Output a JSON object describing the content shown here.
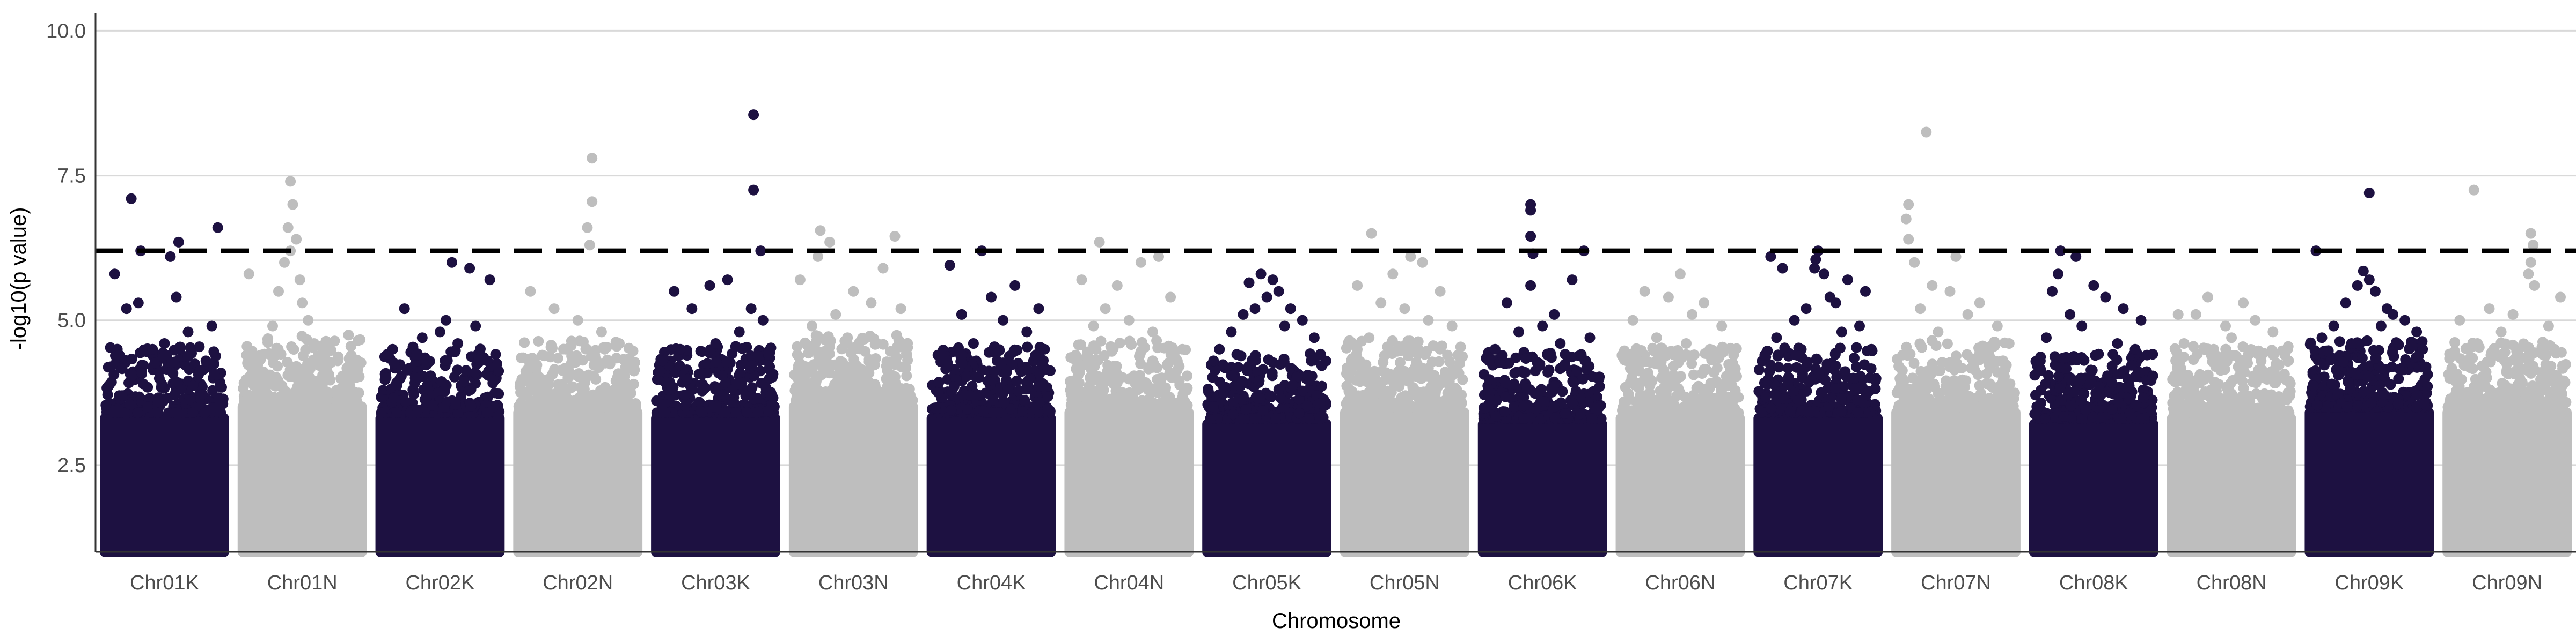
{
  "chart_data": {
    "type": "scatter",
    "subtype": "manhattan",
    "title": "",
    "xlabel": "Chromosome",
    "ylabel": "-log10(p value)",
    "ylim": [
      1,
      10.3
    ],
    "y_ticks": [
      2.5,
      5.0,
      7.5,
      10.0
    ],
    "y_tick_labels": [
      "2.5",
      "5.0",
      "7.5",
      "10.0"
    ],
    "grid": {
      "horizontal_major": true,
      "vertical": false
    },
    "threshold": {
      "value": 6.2,
      "style": "dashed",
      "color": "#000000"
    },
    "colors": {
      "odd": "#1d1141",
      "even": "#bebebe",
      "grid": "#d9d9d9",
      "axis": "#333333"
    },
    "categories": [
      "Chr01K",
      "Chr01N",
      "Chr02K",
      "Chr02N",
      "Chr03K",
      "Chr03N",
      "Chr04K",
      "Chr04N",
      "Chr05K",
      "Chr05N",
      "Chr06K",
      "Chr06N",
      "Chr07K",
      "Chr07N",
      "Chr08K",
      "Chr08N",
      "Chr09K",
      "Chr09N"
    ],
    "series": [
      {
        "category": "Chr01K",
        "color": "#1d1141",
        "bulk_max": 3.4,
        "top_points": [
          [
            0.22,
            7.1
          ],
          [
            0.62,
            6.35
          ],
          [
            0.95,
            6.6
          ],
          [
            0.3,
            6.2
          ],
          [
            0.55,
            6.1
          ],
          [
            0.08,
            5.8
          ],
          [
            0.6,
            5.4
          ],
          [
            0.28,
            5.3
          ],
          [
            0.18,
            5.2
          ],
          [
            0.9,
            4.9
          ],
          [
            0.7,
            4.8
          ],
          [
            0.5,
            4.6
          ],
          [
            0.12,
            4.4
          ],
          [
            0.4,
            4.5
          ],
          [
            0.05,
            4.2
          ],
          [
            0.85,
            4.3
          ]
        ]
      },
      {
        "category": "Chr01N",
        "color": "#bebebe",
        "bulk_max": 3.6,
        "top_points": [
          [
            0.4,
            7.4
          ],
          [
            0.42,
            7.0
          ],
          [
            0.38,
            6.6
          ],
          [
            0.45,
            6.4
          ],
          [
            0.4,
            6.2
          ],
          [
            0.35,
            6.0
          ],
          [
            0.05,
            5.8
          ],
          [
            0.48,
            5.7
          ],
          [
            0.3,
            5.5
          ],
          [
            0.5,
            5.3
          ],
          [
            0.55,
            5.0
          ],
          [
            0.25,
            4.9
          ],
          [
            0.6,
            4.6
          ],
          [
            0.7,
            4.5
          ],
          [
            0.8,
            4.3
          ],
          [
            0.9,
            4.2
          ],
          [
            0.15,
            4.4
          ]
        ]
      },
      {
        "category": "Chr02K",
        "color": "#1d1141",
        "bulk_max": 3.4,
        "top_points": [
          [
            0.6,
            6.0
          ],
          [
            0.75,
            5.9
          ],
          [
            0.92,
            5.7
          ],
          [
            0.2,
            5.2
          ],
          [
            0.55,
            5.0
          ],
          [
            0.5,
            4.8
          ],
          [
            0.8,
            4.9
          ],
          [
            0.35,
            4.7
          ],
          [
            0.1,
            4.5
          ],
          [
            0.65,
            4.6
          ],
          [
            0.3,
            4.4
          ],
          [
            0.9,
            4.3
          ]
        ]
      },
      {
        "category": "Chr02N",
        "color": "#bebebe",
        "bulk_max": 3.5,
        "top_points": [
          [
            0.62,
            7.8
          ],
          [
            0.62,
            7.05
          ],
          [
            0.58,
            6.6
          ],
          [
            0.6,
            6.3
          ],
          [
            0.1,
            5.5
          ],
          [
            0.3,
            5.2
          ],
          [
            0.5,
            5.0
          ],
          [
            0.7,
            4.8
          ],
          [
            0.85,
            4.6
          ],
          [
            0.2,
            4.4
          ],
          [
            0.4,
            4.5
          ],
          [
            0.95,
            4.3
          ]
        ]
      },
      {
        "category": "Chr03K",
        "color": "#1d1141",
        "bulk_max": 3.4,
        "top_points": [
          [
            0.82,
            8.55
          ],
          [
            0.82,
            7.25
          ],
          [
            0.88,
            6.2
          ],
          [
            0.6,
            5.7
          ],
          [
            0.45,
            5.6
          ],
          [
            0.15,
            5.5
          ],
          [
            0.8,
            5.2
          ],
          [
            0.3,
            5.2
          ],
          [
            0.9,
            5.0
          ],
          [
            0.7,
            4.8
          ],
          [
            0.5,
            4.6
          ],
          [
            0.2,
            4.5
          ],
          [
            0.05,
            4.3
          ],
          [
            0.95,
            4.4
          ]
        ]
      },
      {
        "category": "Chr03N",
        "color": "#bebebe",
        "bulk_max": 3.6,
        "top_points": [
          [
            0.22,
            6.55
          ],
          [
            0.3,
            6.35
          ],
          [
            0.85,
            6.45
          ],
          [
            0.2,
            6.1
          ],
          [
            0.75,
            5.9
          ],
          [
            0.05,
            5.7
          ],
          [
            0.5,
            5.5
          ],
          [
            0.65,
            5.3
          ],
          [
            0.35,
            5.1
          ],
          [
            0.9,
            5.2
          ],
          [
            0.15,
            4.9
          ],
          [
            0.45,
            4.7
          ],
          [
            0.7,
            4.6
          ],
          [
            0.95,
            4.4
          ]
        ]
      },
      {
        "category": "Chr04K",
        "color": "#1d1141",
        "bulk_max": 3.4,
        "top_points": [
          [
            0.42,
            6.2
          ],
          [
            0.15,
            5.95
          ],
          [
            0.7,
            5.6
          ],
          [
            0.5,
            5.4
          ],
          [
            0.9,
            5.2
          ],
          [
            0.25,
            5.1
          ],
          [
            0.6,
            5.0
          ],
          [
            0.8,
            4.8
          ],
          [
            0.35,
            4.6
          ],
          [
            0.05,
            4.4
          ],
          [
            0.95,
            4.5
          ],
          [
            0.55,
            4.3
          ]
        ]
      },
      {
        "category": "Chr04N",
        "color": "#bebebe",
        "bulk_max": 3.5,
        "top_points": [
          [
            0.25,
            6.35
          ],
          [
            0.75,
            6.1
          ],
          [
            0.6,
            6.0
          ],
          [
            0.1,
            5.7
          ],
          [
            0.4,
            5.6
          ],
          [
            0.85,
            5.4
          ],
          [
            0.3,
            5.2
          ],
          [
            0.5,
            5.0
          ],
          [
            0.2,
            4.9
          ],
          [
            0.7,
            4.8
          ],
          [
            0.95,
            4.5
          ],
          [
            0.05,
            4.4
          ]
        ]
      },
      {
        "category": "Chr05K",
        "color": "#1d1141",
        "bulk_max": 3.3,
        "top_points": [
          [
            0.45,
            5.8
          ],
          [
            0.55,
            5.7
          ],
          [
            0.35,
            5.65
          ],
          [
            0.6,
            5.5
          ],
          [
            0.5,
            5.4
          ],
          [
            0.7,
            5.2
          ],
          [
            0.3,
            5.1
          ],
          [
            0.8,
            5.0
          ],
          [
            0.4,
            5.2
          ],
          [
            0.2,
            4.8
          ],
          [
            0.9,
            4.7
          ],
          [
            0.1,
            4.5
          ],
          [
            0.65,
            4.9
          ],
          [
            0.05,
            4.3
          ],
          [
            0.95,
            4.4
          ]
        ]
      },
      {
        "category": "Chr05N",
        "color": "#bebebe",
        "bulk_max": 3.5,
        "top_points": [
          [
            0.22,
            6.5
          ],
          [
            0.55,
            6.1
          ],
          [
            0.65,
            6.0
          ],
          [
            0.4,
            5.8
          ],
          [
            0.1,
            5.6
          ],
          [
            0.8,
            5.5
          ],
          [
            0.3,
            5.3
          ],
          [
            0.5,
            5.2
          ],
          [
            0.7,
            5.0
          ],
          [
            0.9,
            4.9
          ],
          [
            0.2,
            4.7
          ],
          [
            0.6,
            4.6
          ],
          [
            0.95,
            4.4
          ],
          [
            0.05,
            4.3
          ]
        ]
      },
      {
        "category": "Chr06K",
        "color": "#1d1141",
        "bulk_max": 3.3,
        "top_points": [
          [
            0.4,
            7.0
          ],
          [
            0.4,
            6.9
          ],
          [
            0.4,
            6.45
          ],
          [
            0.42,
            6.15
          ],
          [
            0.85,
            6.2
          ],
          [
            0.4,
            5.6
          ],
          [
            0.75,
            5.7
          ],
          [
            0.2,
            5.3
          ],
          [
            0.6,
            5.1
          ],
          [
            0.5,
            4.9
          ],
          [
            0.3,
            4.8
          ],
          [
            0.9,
            4.7
          ],
          [
            0.1,
            4.5
          ],
          [
            0.65,
            4.6
          ],
          [
            0.05,
            4.3
          ]
        ]
      },
      {
        "category": "Chr06N",
        "color": "#bebebe",
        "bulk_max": 3.4,
        "top_points": [
          [
            0.5,
            5.8
          ],
          [
            0.2,
            5.5
          ],
          [
            0.4,
            5.4
          ],
          [
            0.7,
            5.3
          ],
          [
            0.6,
            5.1
          ],
          [
            0.1,
            5.0
          ],
          [
            0.85,
            4.9
          ],
          [
            0.3,
            4.7
          ],
          [
            0.55,
            4.6
          ],
          [
            0.95,
            4.4
          ],
          [
            0.05,
            4.3
          ],
          [
            0.75,
            4.5
          ]
        ]
      },
      {
        "category": "Chr07K",
        "color": "#1d1141",
        "bulk_max": 3.4,
        "top_points": [
          [
            0.1,
            6.1
          ],
          [
            0.2,
            5.9
          ],
          [
            0.5,
            6.2
          ],
          [
            0.48,
            6.05
          ],
          [
            0.47,
            5.9
          ],
          [
            0.55,
            5.8
          ],
          [
            0.75,
            5.7
          ],
          [
            0.9,
            5.5
          ],
          [
            0.6,
            5.4
          ],
          [
            0.4,
            5.2
          ],
          [
            0.3,
            5.0
          ],
          [
            0.65,
            5.3
          ],
          [
            0.85,
            4.9
          ],
          [
            0.15,
            4.7
          ],
          [
            0.7,
            4.8
          ],
          [
            0.05,
            4.4
          ],
          [
            0.95,
            4.5
          ]
        ]
      },
      {
        "category": "Chr07N",
        "color": "#bebebe",
        "bulk_max": 3.5,
        "top_points": [
          [
            0.25,
            8.25
          ],
          [
            0.1,
            7.0
          ],
          [
            0.08,
            6.75
          ],
          [
            0.1,
            6.4
          ],
          [
            0.5,
            6.1
          ],
          [
            0.15,
            6.0
          ],
          [
            0.3,
            5.6
          ],
          [
            0.45,
            5.5
          ],
          [
            0.7,
            5.3
          ],
          [
            0.2,
            5.2
          ],
          [
            0.6,
            5.1
          ],
          [
            0.85,
            4.9
          ],
          [
            0.35,
            4.8
          ],
          [
            0.95,
            4.6
          ],
          [
            0.05,
            4.4
          ]
        ]
      },
      {
        "category": "Chr08K",
        "color": "#1d1141",
        "bulk_max": 3.3,
        "top_points": [
          [
            0.22,
            6.2
          ],
          [
            0.35,
            6.1
          ],
          [
            0.2,
            5.8
          ],
          [
            0.5,
            5.6
          ],
          [
            0.15,
            5.5
          ],
          [
            0.6,
            5.4
          ],
          [
            0.75,
            5.2
          ],
          [
            0.3,
            5.1
          ],
          [
            0.9,
            5.0
          ],
          [
            0.4,
            4.9
          ],
          [
            0.1,
            4.7
          ],
          [
            0.7,
            4.6
          ],
          [
            0.85,
            4.5
          ],
          [
            0.05,
            4.3
          ],
          [
            0.95,
            4.4
          ]
        ]
      },
      {
        "category": "Chr08N",
        "color": "#bebebe",
        "bulk_max": 3.4,
        "top_points": [
          [
            0.3,
            5.4
          ],
          [
            0.6,
            5.3
          ],
          [
            0.2,
            5.1
          ],
          [
            0.7,
            5.0
          ],
          [
            0.05,
            5.1
          ],
          [
            0.45,
            4.9
          ],
          [
            0.85,
            4.8
          ],
          [
            0.5,
            4.7
          ],
          [
            0.1,
            4.6
          ],
          [
            0.95,
            4.4
          ],
          [
            0.35,
            4.5
          ],
          [
            0.75,
            4.3
          ]
        ]
      },
      {
        "category": "Chr09K",
        "color": "#1d1141",
        "bulk_max": 3.5,
        "top_points": [
          [
            0.5,
            7.2
          ],
          [
            0.05,
            6.2
          ],
          [
            0.45,
            5.85
          ],
          [
            0.5,
            5.7
          ],
          [
            0.4,
            5.6
          ],
          [
            0.55,
            5.5
          ],
          [
            0.3,
            5.3
          ],
          [
            0.65,
            5.2
          ],
          [
            0.7,
            5.1
          ],
          [
            0.8,
            5.0
          ],
          [
            0.2,
            4.9
          ],
          [
            0.9,
            4.8
          ],
          [
            0.1,
            4.7
          ],
          [
            0.6,
            4.9
          ],
          [
            0.95,
            4.5
          ],
          [
            0.35,
            4.6
          ]
        ]
      },
      {
        "category": "Chr09N",
        "color": "#bebebe",
        "bulk_max": 3.5,
        "top_points": [
          [
            0.22,
            7.25
          ],
          [
            0.7,
            6.5
          ],
          [
            0.72,
            6.3
          ],
          [
            0.7,
            6.0
          ],
          [
            0.68,
            5.8
          ],
          [
            0.73,
            5.6
          ],
          [
            0.95,
            5.4
          ],
          [
            0.35,
            5.2
          ],
          [
            0.55,
            5.1
          ],
          [
            0.1,
            5.0
          ],
          [
            0.85,
            4.9
          ],
          [
            0.45,
            4.8
          ],
          [
            0.25,
            4.6
          ],
          [
            0.05,
            4.4
          ],
          [
            0.9,
            4.5
          ]
        ]
      }
    ]
  }
}
